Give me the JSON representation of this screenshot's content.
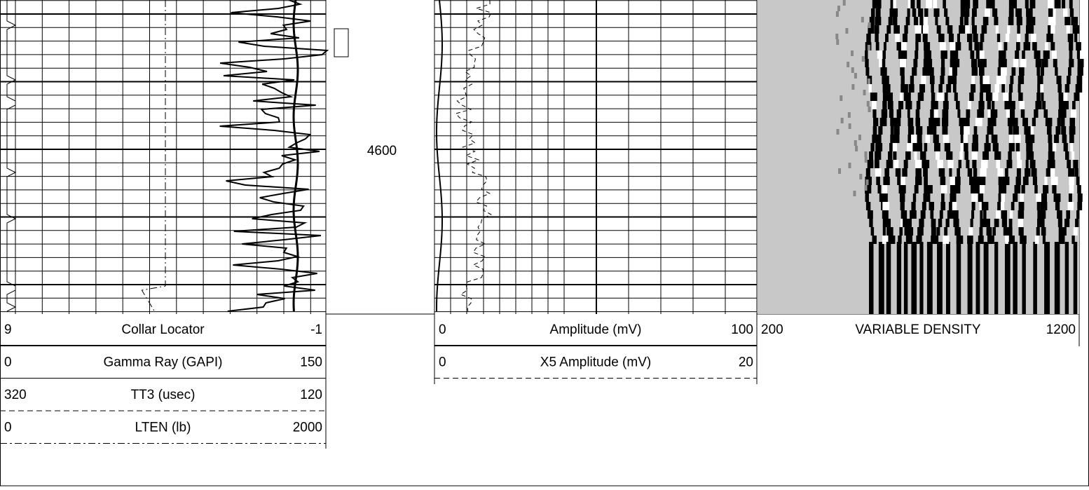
{
  "depth_label": "4600",
  "tracks": [
    {
      "curves": [
        {
          "name": "Collar Locator",
          "left": "9",
          "right": "-1"
        },
        {
          "name": "Gamma Ray (GAPI)",
          "left": "0",
          "right": "150"
        },
        {
          "name": "TT3 (usec)",
          "left": "320",
          "right": "120"
        },
        {
          "name": "LTEN (lb)",
          "left": "0",
          "right": "2000"
        }
      ]
    },
    {
      "curves": [
        {
          "name": "Amplitude (mV)",
          "left": "0",
          "right": "100"
        },
        {
          "name": "X5 Amplitude (mV)",
          "left": "0",
          "right": "20"
        }
      ]
    },
    {
      "curves": [
        {
          "name": "VARIABLE DENSITY",
          "left": "200",
          "right": "1200"
        }
      ]
    }
  ]
}
